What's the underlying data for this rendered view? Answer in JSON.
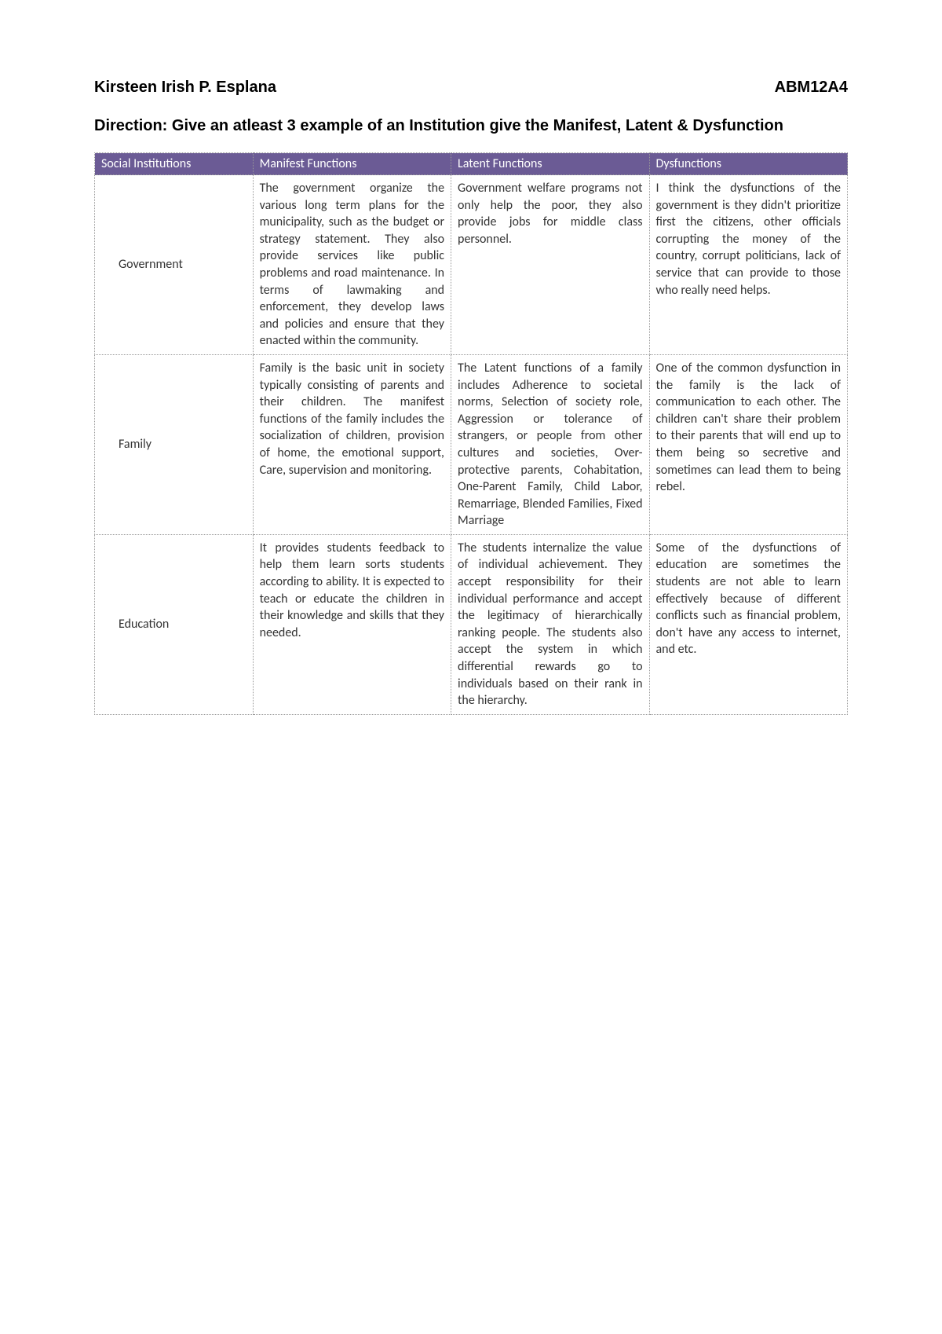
{
  "header": {
    "student_name": "Kirsteen Irish P. Esplana",
    "section_code": "ABM12A4"
  },
  "direction": "Direction: Give an atleast 3 example of an Institution give the Manifest, Latent & Dysfunction",
  "table": {
    "header_bg": "#6b5b95",
    "header_text_color": "#ffffff",
    "border_color": "#999999",
    "columns": [
      "Social Institutions",
      "Manifest Functions",
      "Latent Functions",
      "Dysfunctions"
    ],
    "rows": [
      {
        "institution": "Government",
        "manifest": "The government organize the various long term plans for the municipality, such as the budget or strategy statement. They also provide services like public problems and road maintenance. In terms of lawmaking and enforcement, they develop laws and policies and ensure that they enacted within the community.",
        "latent": "Government welfare programs not only help the poor, they also provide jobs for middle class personnel.",
        "dysfunction": "I think the dysfunctions of the government is they didn't prioritize first the citizens, other officials corrupting the money of the country, corrupt politicians, lack of service that can provide to those who really need helps."
      },
      {
        "institution": "Family",
        "manifest": "Family is the basic unit in society typically consisting of parents and their children. The manifest functions of the family includes the socialization of children, provision of home, the emotional support, Care, supervision and monitoring.",
        "latent": "The Latent functions of a family includes Adherence to societal norms, Selection of society role, Aggression or tolerance of strangers, or people from other cultures and societies, Over-protective parents, Cohabitation, One-Parent Family, Child Labor, Remarriage, Blended Families, Fixed Marriage",
        "dysfunction": "One of the common dysfunction in the family is the lack of communication to each other. The children can't share their problem to their parents that will end up to them being so secretive and sometimes can lead them to being rebel."
      },
      {
        "institution": "Education",
        "manifest": "It provides students feedback to help them learn sorts students according to ability. It is expected to teach or educate the children in their knowledge and skills that they needed.",
        "latent": "The students internalize the value of individual achievement. They accept responsibility for their individual performance and accept the legitimacy of hierarchically ranking people. The students also accept the system in which differential rewards go to individuals based on their rank in the hierarchy.",
        "dysfunction": "Some of the dysfunctions of education are sometimes the students are not able to learn effectively because of different conflicts such as financial problem, don't have any access to internet, and etc."
      }
    ]
  }
}
